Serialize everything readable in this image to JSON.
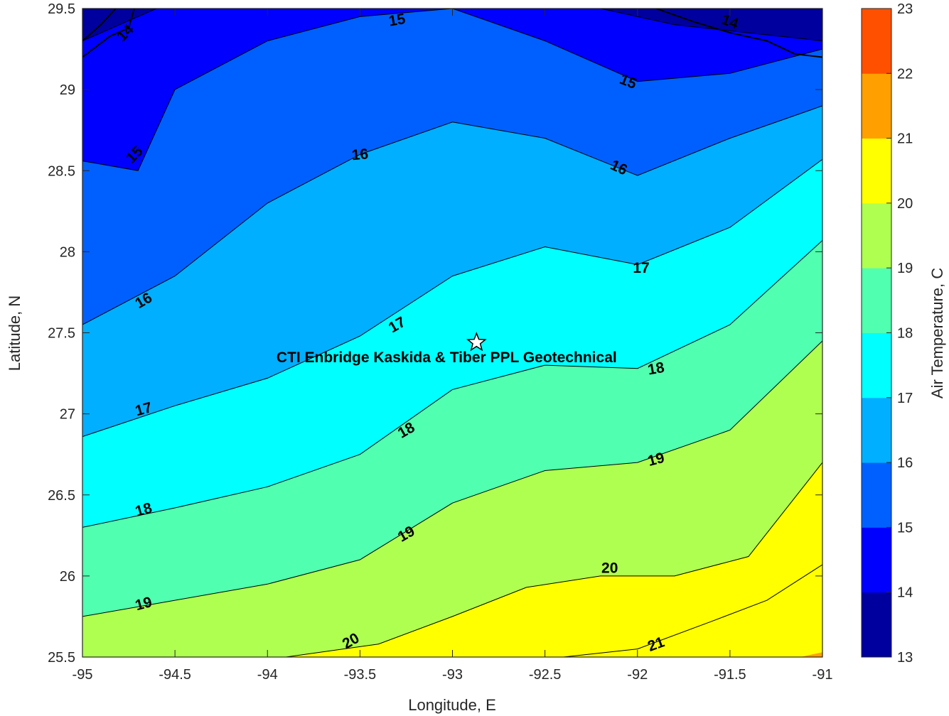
{
  "chart_data": {
    "type": "heatmap",
    "subtype": "filled-contour map",
    "title": "",
    "xlabel": "Longitude, E",
    "ylabel": "Latitude, N",
    "xlim": [
      -95,
      -91
    ],
    "ylim": [
      25.5,
      29.5
    ],
    "x_ticks": [
      "-95",
      "-94.5",
      "-94",
      "-93.5",
      "-93",
      "-92.5",
      "-92",
      "-91.5",
      "-91"
    ],
    "y_ticks": [
      "25.5",
      "26",
      "26.5",
      "27",
      "27.5",
      "28",
      "28.5",
      "29",
      "29.5"
    ],
    "grid": false,
    "colorbar": {
      "label": "Air Temperature, C",
      "range": [
        13,
        23
      ],
      "ticks": [
        "13",
        "14",
        "15",
        "16",
        "17",
        "18",
        "19",
        "20",
        "21",
        "22",
        "23"
      ],
      "colors": [
        "#00009f",
        "#0000ff",
        "#0060ff",
        "#00afff",
        "#00ffff",
        "#50ffaf",
        "#afff50",
        "#ffff00",
        "#ffa000",
        "#ff5000",
        "#ff0000"
      ]
    },
    "isotherms": [
      {
        "level": 21,
        "points": [
          [
            -92.4,
            25.5
          ],
          [
            -92.0,
            25.55
          ],
          [
            -91.6,
            25.72
          ],
          [
            -91.3,
            25.85
          ],
          [
            -91.0,
            26.07
          ]
        ]
      },
      {
        "level": 20,
        "points": [
          [
            -93.9,
            25.5
          ],
          [
            -93.4,
            25.58
          ],
          [
            -93.0,
            25.75
          ],
          [
            -92.6,
            25.93
          ],
          [
            -92.2,
            26.0
          ],
          [
            -91.8,
            26.0
          ],
          [
            -91.4,
            26.12
          ],
          [
            -91.0,
            26.7
          ]
        ]
      },
      {
        "level": 19,
        "points": [
          [
            -95.0,
            25.75
          ],
          [
            -94.5,
            25.85
          ],
          [
            -94.0,
            25.95
          ],
          [
            -93.5,
            26.1
          ],
          [
            -93.0,
            26.45
          ],
          [
            -92.5,
            26.65
          ],
          [
            -92.0,
            26.7
          ],
          [
            -91.5,
            26.9
          ],
          [
            -91.0,
            27.45
          ]
        ]
      },
      {
        "level": 18,
        "points": [
          [
            -95.0,
            26.3
          ],
          [
            -94.5,
            26.42
          ],
          [
            -94.0,
            26.55
          ],
          [
            -93.5,
            26.75
          ],
          [
            -93.0,
            27.15
          ],
          [
            -92.5,
            27.3
          ],
          [
            -92.0,
            27.28
          ],
          [
            -91.5,
            27.55
          ],
          [
            -91.0,
            28.07
          ]
        ]
      },
      {
        "level": 17,
        "points": [
          [
            -95.0,
            26.86
          ],
          [
            -94.5,
            27.05
          ],
          [
            -94.0,
            27.22
          ],
          [
            -93.5,
            27.48
          ],
          [
            -93.0,
            27.85
          ],
          [
            -92.5,
            28.03
          ],
          [
            -92.0,
            27.92
          ],
          [
            -91.5,
            28.15
          ],
          [
            -91.0,
            28.57
          ]
        ]
      },
      {
        "level": 16,
        "points": [
          [
            -95.0,
            27.55
          ],
          [
            -94.5,
            27.85
          ],
          [
            -94.0,
            28.3
          ],
          [
            -93.5,
            28.6
          ],
          [
            -93.0,
            28.8
          ],
          [
            -92.5,
            28.7
          ],
          [
            -92.0,
            28.47
          ],
          [
            -91.5,
            28.7
          ],
          [
            -91.0,
            28.9
          ]
        ]
      },
      {
        "level": 15,
        "points": [
          [
            -95.0,
            28.56
          ],
          [
            -94.7,
            28.5
          ],
          [
            -94.5,
            29.0
          ],
          [
            -94.0,
            29.3
          ],
          [
            -93.5,
            29.45
          ],
          [
            -93.0,
            29.5
          ],
          [
            -92.5,
            29.3
          ],
          [
            -92.0,
            29.05
          ],
          [
            -91.5,
            29.1
          ],
          [
            -91.0,
            29.25
          ]
        ]
      },
      {
        "level": 14,
        "points": [
          [
            -95.0,
            29.3
          ],
          [
            -94.8,
            29.4
          ],
          [
            -94.6,
            29.5
          ]
        ]
      },
      {
        "level": 14,
        "points": [
          [
            -92.2,
            29.5
          ],
          [
            -91.8,
            29.4
          ],
          [
            -91.4,
            29.35
          ],
          [
            -91.0,
            29.3
          ]
        ]
      }
    ],
    "contour_labels": [
      {
        "text": "15",
        "x": -93.3,
        "y": 29.43,
        "angle": -10
      },
      {
        "text": "14",
        "x": -91.5,
        "y": 29.42,
        "angle": 20
      },
      {
        "text": "15",
        "x": -92.05,
        "y": 29.05,
        "angle": 22
      },
      {
        "text": "14",
        "x": -94.77,
        "y": 29.35,
        "angle": -45
      },
      {
        "text": "15",
        "x": -94.72,
        "y": 28.6,
        "angle": -45
      },
      {
        "text": "16",
        "x": -93.5,
        "y": 28.6,
        "angle": -5
      },
      {
        "text": "16",
        "x": -92.1,
        "y": 28.52,
        "angle": 25
      },
      {
        "text": "17",
        "x": -91.98,
        "y": 27.9,
        "angle": 0
      },
      {
        "text": "16",
        "x": -94.67,
        "y": 27.7,
        "angle": -30
      },
      {
        "text": "17",
        "x": -93.3,
        "y": 27.55,
        "angle": -30
      },
      {
        "text": "18",
        "x": -91.9,
        "y": 27.28,
        "angle": -10
      },
      {
        "text": "17",
        "x": -94.67,
        "y": 27.03,
        "angle": -15
      },
      {
        "text": "18",
        "x": -93.25,
        "y": 26.9,
        "angle": -30
      },
      {
        "text": "19",
        "x": -91.9,
        "y": 26.72,
        "angle": -15
      },
      {
        "text": "18",
        "x": -94.67,
        "y": 26.41,
        "angle": -15
      },
      {
        "text": "19",
        "x": -93.25,
        "y": 26.26,
        "angle": -30
      },
      {
        "text": "20",
        "x": -92.15,
        "y": 26.05,
        "angle": 0
      },
      {
        "text": "19",
        "x": -94.67,
        "y": 25.83,
        "angle": -15
      },
      {
        "text": "20",
        "x": -93.55,
        "y": 25.6,
        "angle": -30
      },
      {
        "text": "21",
        "x": -91.9,
        "y": 25.58,
        "angle": -20
      }
    ],
    "site": {
      "name": "CTI Enbridge  Kaskida & Tiber PPL Geotechnical",
      "x": -92.87,
      "y": 27.44
    }
  }
}
